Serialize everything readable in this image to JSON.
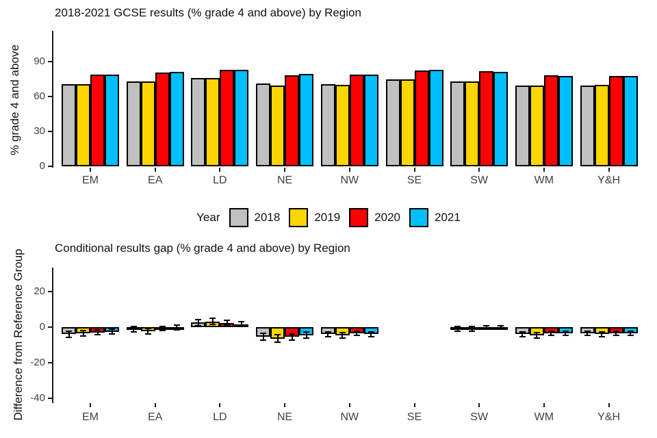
{
  "legend": {
    "title": "Year",
    "entries": [
      {
        "label": "2018",
        "color": "#C0C0C0"
      },
      {
        "label": "2019",
        "color": "#FFD500"
      },
      {
        "label": "2020",
        "color": "#FF0000"
      },
      {
        "label": "2021",
        "color": "#00BFFF"
      }
    ]
  },
  "colors": {
    "bar_outline": "#000000",
    "axis": "#1a1a1a",
    "tick_text": "#404040",
    "title_text": "#111111"
  },
  "chart_data": [
    {
      "type": "bar",
      "title": "2018-2021 GCSE results (% grade 4 and above) by Region",
      "xlabel": "",
      "ylabel": "% grade 4 and above",
      "categories": [
        "EM",
        "EA",
        "LD",
        "NE",
        "NW",
        "SE",
        "SW",
        "WM",
        "Y&H"
      ],
      "yticks": [
        90,
        60,
        30,
        0
      ],
      "ylim": [
        0,
        116
      ],
      "grid": false,
      "legend_position": "below",
      "series": [
        {
          "name": "2018",
          "color": "#C0C0C0",
          "values": [
            70.5,
            73,
            75.5,
            71,
            70.5,
            74.5,
            73,
            69,
            69.5
          ]
        },
        {
          "name": "2019",
          "color": "#FFD500",
          "values": [
            70.5,
            72.5,
            75.5,
            69,
            70,
            74.5,
            73,
            69.5,
            70
          ]
        },
        {
          "name": "2020",
          "color": "#FF0000",
          "values": [
            78.5,
            80.5,
            83,
            78,
            78.5,
            82,
            81.5,
            78,
            77.5
          ]
        },
        {
          "name": "2021",
          "color": "#00BFFF",
          "values": [
            78.5,
            81,
            83,
            79,
            78.5,
            82.5,
            81,
            77.5,
            77.5
          ]
        }
      ]
    },
    {
      "type": "bar",
      "title": "Conditional results gap (% grade 4 and above) by Region",
      "xlabel": "",
      "ylabel": "Difference from Reference Group",
      "categories": [
        "EM",
        "EA",
        "LD",
        "NE",
        "NW",
        "SE",
        "SW",
        "WM",
        "Y&H"
      ],
      "yticks": [
        20,
        0,
        -20,
        -40
      ],
      "ylim": [
        -42,
        33
      ],
      "grid": false,
      "reference_category": "SE",
      "error_bars": true,
      "series": [
        {
          "name": "2018",
          "color": "#C0C0C0",
          "values": [
            -4,
            -1.2,
            2.6,
            -5.5,
            -4,
            null,
            -1,
            -4,
            -3.5
          ],
          "errors": [
            1.6,
            1.4,
            1.7,
            1.9,
            1.4,
            null,
            1.2,
            1.4,
            1.3
          ]
        },
        {
          "name": "2019",
          "color": "#FFD500",
          "values": [
            -3.5,
            -2.3,
            3.2,
            -6.5,
            -4.5,
            null,
            -1,
            -4.5,
            -4
          ],
          "errors": [
            1.6,
            1.5,
            1.7,
            2.1,
            1.5,
            null,
            1.3,
            1.6,
            1.5
          ]
        },
        {
          "name": "2020",
          "color": "#FF0000",
          "values": [
            -3,
            -0.8,
            2.5,
            -5.5,
            -3.5,
            null,
            -0.2,
            -3.5,
            -3.5
          ],
          "errors": [
            1.4,
            1.3,
            1.5,
            1.8,
            1.3,
            null,
            1.1,
            1.3,
            1.3
          ]
        },
        {
          "name": "2021",
          "color": "#00BFFF",
          "values": [
            -2.5,
            -0.2,
            1.7,
            -4.5,
            -4,
            null,
            -0.2,
            -3.5,
            -3.5
          ],
          "errors": [
            1.2,
            1.3,
            1.4,
            1.7,
            1.3,
            null,
            1.1,
            1.3,
            1.2
          ]
        }
      ]
    }
  ]
}
